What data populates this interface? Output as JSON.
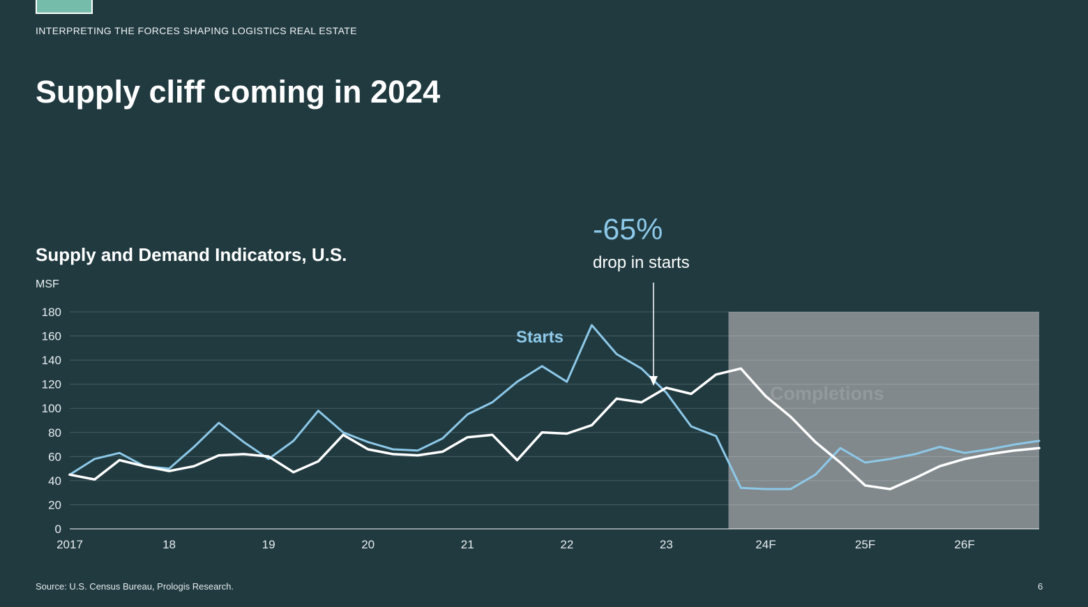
{
  "slide": {
    "eyebrow": "INTERPRETING THE FORCES SHAPING LOGISTICS REAL ESTATE",
    "title": "Supply cliff coming in 2024",
    "source": "Source: U.S. Census Bureau, Prologis Research.",
    "page_number": "6"
  },
  "colors": {
    "background": "#203A40",
    "accent_blue": "#8DC8E8",
    "line_white": "#FFFFFF",
    "forecast_gray": "#8A9094",
    "swatch_teal": "#76BCAA"
  },
  "chart_data": {
    "type": "line",
    "title": "Supply and Demand Indicators, U.S.",
    "ylabel": "MSF",
    "ylim": [
      0,
      180
    ],
    "ytick_step": 20,
    "grid": true,
    "x_unit": "quarters",
    "x_tick_labels": [
      "2017",
      "18",
      "19",
      "20",
      "21",
      "22",
      "23",
      "24F",
      "25F",
      "26F"
    ],
    "x_tick_indices": [
      0,
      4,
      8,
      12,
      16,
      20,
      24,
      28,
      32,
      36
    ],
    "n_points": 40,
    "forecast": {
      "start_index": 26.5,
      "fill": "#8A9094",
      "covers_labels": [
        "24F",
        "25F",
        "26F"
      ]
    },
    "series": [
      {
        "name": "Starts",
        "color": "#8DC8E8",
        "values": [
          45,
          58,
          63,
          52,
          50,
          68,
          88,
          72,
          58,
          73,
          98,
          80,
          72,
          66,
          65,
          75,
          95,
          105,
          122,
          135,
          122,
          169,
          145,
          133,
          113,
          85,
          77,
          34,
          33,
          33,
          45,
          67,
          55,
          58,
          62,
          68,
          63,
          66,
          70,
          73
        ]
      },
      {
        "name": "Completions",
        "color": "#FFFFFF",
        "values": [
          45,
          41,
          57,
          52,
          48,
          52,
          61,
          62,
          60,
          47,
          56,
          78,
          66,
          62,
          61,
          64,
          76,
          78,
          57,
          80,
          79,
          86,
          108,
          105,
          117,
          112,
          128,
          133,
          110,
          93,
          72,
          55,
          36,
          33,
          42,
          52,
          58,
          62,
          65,
          67
        ]
      }
    ],
    "annotations": {
      "big_stat": "-65%",
      "big_stat_caption": "drop in starts",
      "starts_label": "Starts",
      "completions_label": "Completions"
    }
  }
}
